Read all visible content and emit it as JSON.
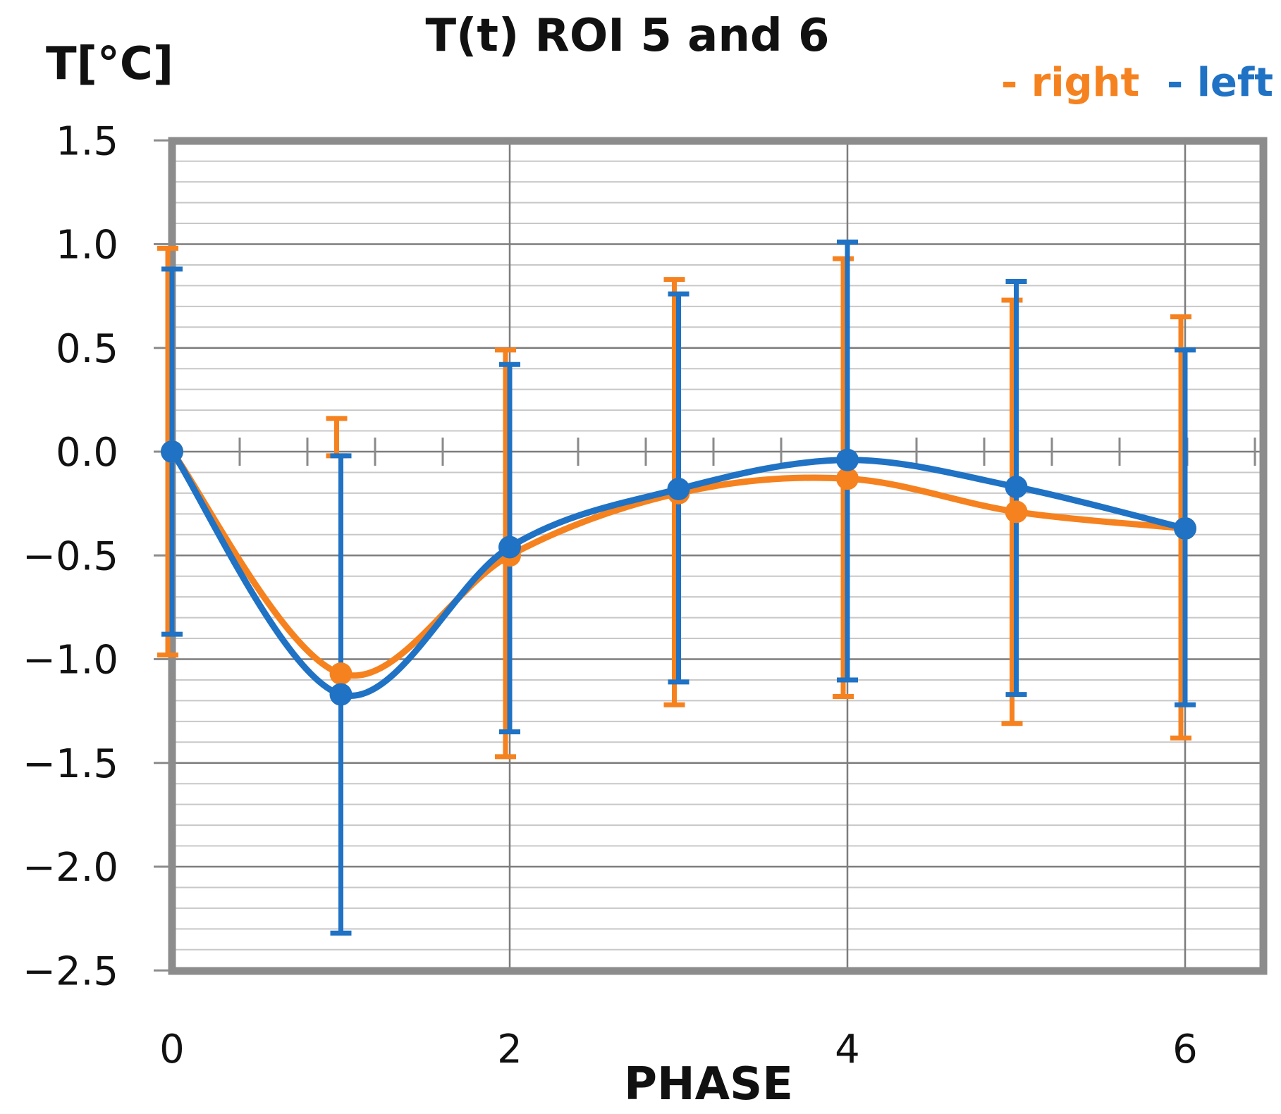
{
  "chart_data": {
    "type": "line",
    "title": "T(t)  ROI 5 and 6",
    "ylabel": "T[°C]",
    "xlabel": "PHASE",
    "x": [
      0,
      1,
      2,
      3,
      4,
      5,
      6
    ],
    "xlim": [
      0,
      6.4
    ],
    "ylim": [
      -2.5,
      1.5
    ],
    "xticks": [
      0,
      2,
      4,
      6
    ],
    "xtick_labels": [
      "0",
      "2",
      "4",
      "6"
    ],
    "yticks": [
      1.5,
      1.0,
      0.5,
      0.0,
      -0.5,
      -1.0,
      -1.5,
      -2.0,
      -2.5
    ],
    "ytick_labels": [
      "1.5",
      "1.0",
      "0.5",
      "0.0",
      "−0.5",
      "−1.0",
      "−1.5",
      "−2.0",
      "−2.5"
    ],
    "grid": true,
    "legend_position": "top-right",
    "series": [
      {
        "name": "right",
        "legend_label": "- right",
        "color": "#f5821f",
        "values": [
          0.0,
          -1.07,
          -0.5,
          -0.2,
          -0.13,
          -0.29,
          -0.37
        ],
        "error_upper": [
          0.98,
          0.16,
          0.49,
          0.83,
          0.93,
          0.73,
          0.65
        ],
        "error_lower": [
          -0.98,
          -0.02,
          -1.47,
          -1.22,
          -1.18,
          -1.31,
          -1.38
        ]
      },
      {
        "name": "left",
        "legend_label": "- left",
        "color": "#1f72c4",
        "values": [
          0.0,
          -1.17,
          -0.46,
          -0.18,
          -0.04,
          -0.17,
          -0.37
        ],
        "error_upper": [
          0.88,
          -0.02,
          0.42,
          0.76,
          1.01,
          0.82,
          0.49
        ],
        "error_lower": [
          -0.88,
          -2.32,
          -1.35,
          -1.11,
          -1.1,
          -1.17,
          -1.22
        ]
      }
    ]
  }
}
